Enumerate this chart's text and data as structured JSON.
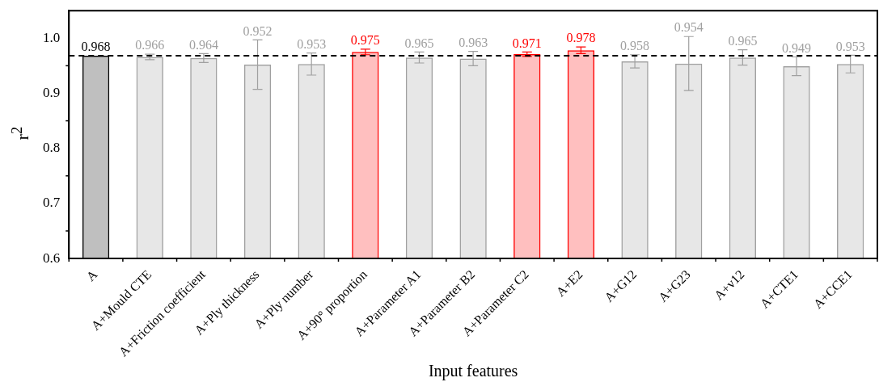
{
  "chart_data": {
    "type": "bar",
    "xlabel": "Input features",
    "ylabel": "r$^{2}$",
    "categories": [
      "A",
      "A+Mould CTE",
      "A+Friction coefficient",
      "A+Ply thickness",
      "A+Ply number",
      "A+90° proportion",
      "A+Parameter A1",
      "A+Parameter B2",
      "A+Parameter C2",
      "A+E2",
      "A+G12",
      "A+G23",
      "A+v12",
      "A+CTE1",
      "A+CCE1"
    ],
    "values": [
      0.968,
      0.966,
      0.964,
      0.952,
      0.953,
      0.975,
      0.965,
      0.963,
      0.971,
      0.978,
      0.958,
      0.954,
      0.965,
      0.949,
      0.953
    ],
    "errors": [
      null,
      0.005,
      0.008,
      0.045,
      0.02,
      0.005,
      0.01,
      0.013,
      0.004,
      0.006,
      0.012,
      0.049,
      0.014,
      0.017,
      0.016
    ],
    "colors": [
      "#000000",
      "#a0a0a0",
      "#a0a0a0",
      "#a0a0a0",
      "#a0a0a0",
      "#ff0000",
      "#a0a0a0",
      "#a0a0a0",
      "#ff0000",
      "#ff0000",
      "#a0a0a0",
      "#a0a0a0",
      "#a0a0a0",
      "#a0a0a0",
      "#a0a0a0"
    ],
    "data_labels": true,
    "ylim": [
      0.6,
      1.05
    ],
    "yticks": [
      0.6,
      0.7,
      0.8,
      0.9,
      {
        "value": 1.0,
        "label": "1.0"
      }
    ],
    "ref_lines": [
      {
        "axis": "y",
        "value": 0.968,
        "color": "#000000",
        "line_style": "dashed"
      }
    ],
    "grid": false,
    "legend": false
  }
}
